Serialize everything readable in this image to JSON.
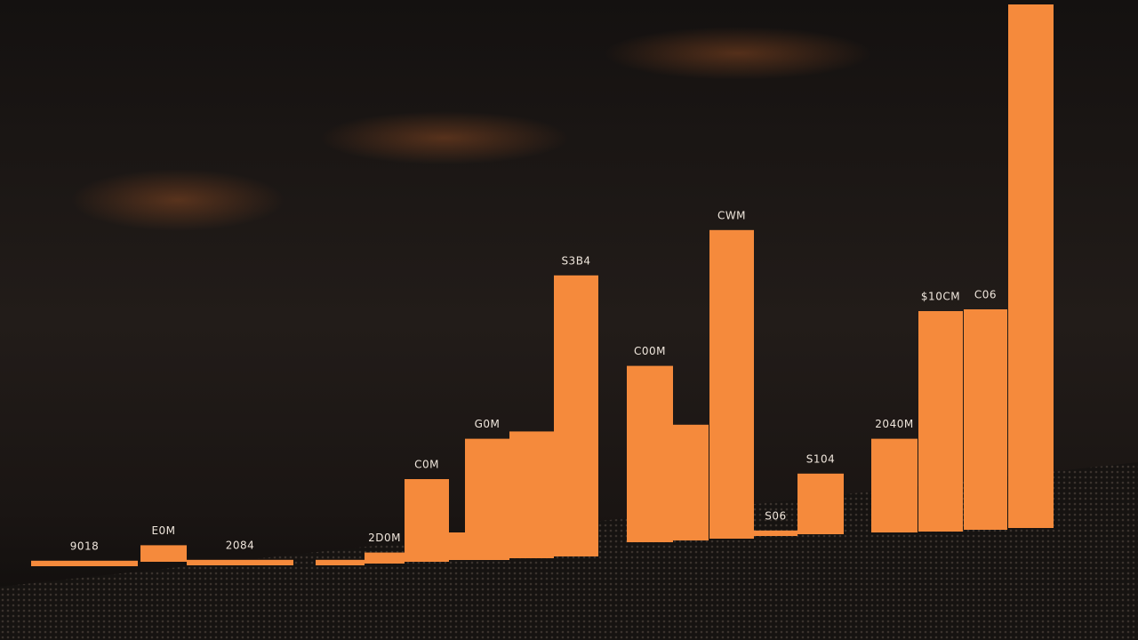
{
  "chart_data": {
    "type": "bar",
    "categories": [
      null,
      null,
      null,
      null,
      null,
      null,
      null,
      null,
      null,
      null,
      null,
      null,
      null,
      null,
      null,
      null,
      null,
      null,
      null
    ],
    "values": [
      1,
      3,
      1,
      1,
      2,
      15,
      5,
      22,
      23,
      51,
      32,
      21,
      56,
      1,
      11,
      17,
      40,
      40,
      95
    ],
    "annotations": [
      "9018",
      "E0M",
      "2084",
      null,
      "2D0M",
      "C0M",
      null,
      "G0M",
      null,
      "S3B4",
      "C00M",
      null,
      "CWM",
      "S06",
      "S104",
      "2040M",
      "$10CM",
      "C06",
      null
    ],
    "color": "#f58a3c",
    "ylim": [
      0,
      100
    ]
  }
}
